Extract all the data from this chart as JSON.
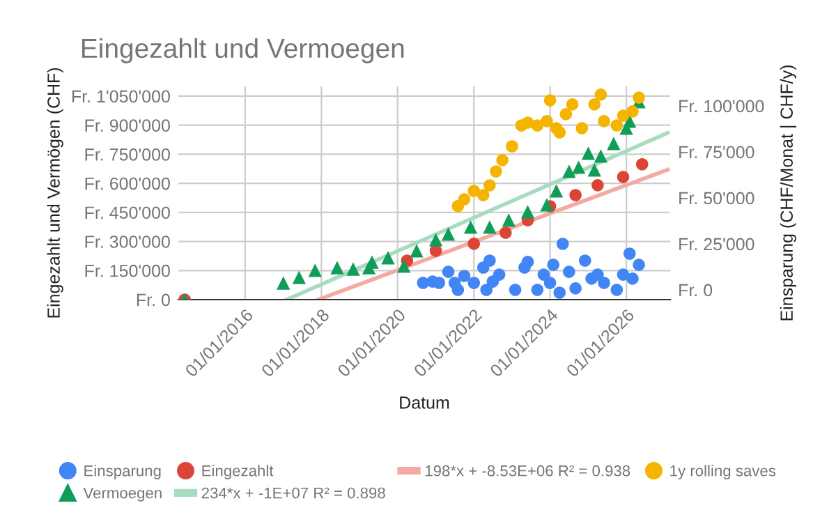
{
  "chart_data": {
    "type": "scatter",
    "title": "Eingezahlt und Vermoegen",
    "xlabel": "Datum",
    "ylabel": "Eingezahlt und Vermögen (CHF)",
    "y2label": "Einsparung (CHF/Monat | CHF/y)",
    "xlim": [
      "2014-04-01",
      "2027-02-25"
    ],
    "xticks": [
      {
        "value": "2016-01-01",
        "label": "01/01/2016"
      },
      {
        "value": "2018-01-01",
        "label": "01/01/2018"
      },
      {
        "value": "2020-01-01",
        "label": "01/01/2020"
      },
      {
        "value": "2022-01-01",
        "label": "01/01/2022"
      },
      {
        "value": "2024-01-01",
        "label": "01/01/2024"
      },
      {
        "value": "2026-01-01",
        "label": "01/01/2026"
      }
    ],
    "ylim": [
      0,
      1100000
    ],
    "yticks": [
      {
        "value": 0,
        "label": "Fr. 0"
      },
      {
        "value": 150000,
        "label": "Fr. 150'000"
      },
      {
        "value": 300000,
        "label": "Fr. 300'000"
      },
      {
        "value": 450000,
        "label": "Fr. 450'000"
      },
      {
        "value": 600000,
        "label": "Fr. 600'000"
      },
      {
        "value": 750000,
        "label": "Fr. 750'000"
      },
      {
        "value": 900000,
        "label": "Fr. 900'000"
      },
      {
        "value": 1050000,
        "label": "Fr. 1'050'000"
      }
    ],
    "y2lim": [
      -5300,
      110600
    ],
    "y2ticks": [
      {
        "value": 0,
        "label": "Fr. 0"
      },
      {
        "value": 25000,
        "label": "Fr. 25'000"
      },
      {
        "value": 50000,
        "label": "Fr. 50'000"
      },
      {
        "value": 75000,
        "label": "Fr. 75'000"
      },
      {
        "value": 100000,
        "label": "Fr. 100'000"
      }
    ],
    "grid": true,
    "legend": "bottom",
    "series": [
      {
        "name": "Einsparung",
        "marker": "circle",
        "axis": "y2",
        "color": "#4285f4",
        "x": [
          "2020-09",
          "2020-12",
          "2021-02",
          "2021-05",
          "2021-07",
          "2021-08",
          "2021-10",
          "2022-01",
          "2022-04",
          "2022-05",
          "2022-06",
          "2022-07",
          "2022-09",
          "2023-02",
          "2023-05",
          "2023-06",
          "2023-09",
          "2023-11",
          "2024-01",
          "2024-02",
          "2024-04",
          "2024-05",
          "2024-07",
          "2024-09",
          "2024-12",
          "2025-02",
          "2025-04",
          "2025-06",
          "2025-10",
          "2025-12",
          "2026-02",
          "2026-03",
          "2026-05"
        ],
        "values": [
          3800,
          4500,
          3800,
          9800,
          3800,
          0,
          7600,
          3800,
          12100,
          0,
          15900,
          4500,
          8300,
          0,
          12100,
          15200,
          0,
          8300,
          3800,
          13600,
          -1500,
          25000,
          9800,
          800,
          15900,
          6100,
          8300,
          3800,
          0,
          8300,
          19700,
          6100,
          13600
        ]
      },
      {
        "name": "Eingezahlt",
        "marker": "circle",
        "axis": "y",
        "color": "#db4437",
        "x": [
          "2014-06",
          "2020-04",
          "2021-01",
          "2022-01",
          "2022-11",
          "2023-06",
          "2024-01",
          "2024-09",
          "2025-04",
          "2025-12",
          "2026-06"
        ],
        "values": [
          0,
          201000,
          252000,
          288000,
          345000,
          410000,
          482000,
          539000,
          590000,
          633000,
          698000
        ]
      },
      {
        "name": "198*x + -8.53E+06 R² = 0.938",
        "type": "line",
        "marker": "none",
        "axis": "y",
        "color": "#f4a9a2",
        "x": [
          "2017-12",
          "2027-02"
        ],
        "values": [
          0,
          670000
        ]
      },
      {
        "name": "1y rolling saves",
        "marker": "circle",
        "axis": "y2",
        "color": "#f4b400",
        "x": [
          "2021-08",
          "2021-10",
          "2022-01",
          "2022-04",
          "2022-06",
          "2022-08",
          "2022-10",
          "2023-01",
          "2023-04",
          "2023-06",
          "2023-09",
          "2023-12",
          "2024-01",
          "2024-03",
          "2024-04",
          "2024-06",
          "2024-08",
          "2024-11",
          "2025-03",
          "2025-05",
          "2025-06",
          "2025-10",
          "2025-12",
          "2026-03",
          "2026-05"
        ],
        "values": [
          45500,
          49200,
          53800,
          51500,
          56800,
          64400,
          70500,
          78000,
          89400,
          90900,
          89400,
          91700,
          103000,
          87900,
          85600,
          95500,
          100800,
          87900,
          100800,
          106100,
          91700,
          89400,
          94700,
          97000,
          104500
        ]
      },
      {
        "name": "Vermoegen",
        "marker": "triangle",
        "axis": "y",
        "color": "#0f9d58",
        "x": [
          "2014-06",
          "2017-01",
          "2017-06",
          "2017-11",
          "2018-06",
          "2018-11",
          "2019-04",
          "2019-05",
          "2019-10",
          "2020-03",
          "2020-07",
          "2021-01",
          "2021-05",
          "2021-12",
          "2022-06",
          "2022-12",
          "2023-06",
          "2023-12",
          "2024-03",
          "2024-07",
          "2024-10",
          "2025-01",
          "2025-03",
          "2025-05",
          "2025-09",
          "2026-01",
          "2026-02",
          "2026-05"
        ],
        "values": [
          0,
          86000,
          115000,
          151000,
          165000,
          158000,
          165000,
          194000,
          216000,
          173000,
          252000,
          309000,
          338000,
          374000,
          374000,
          410000,
          453000,
          489000,
          561000,
          662000,
          683000,
          755000,
          669000,
          741000,
          806000,
          885000,
          921000,
          1021000
        ]
      },
      {
        "name": "234*x + -1E+07 R² = 0.898",
        "type": "line",
        "marker": "none",
        "axis": "y",
        "color": "#a8dcc0",
        "x": [
          "2017-02",
          "2027-02"
        ],
        "values": [
          0,
          860000
        ]
      }
    ]
  }
}
